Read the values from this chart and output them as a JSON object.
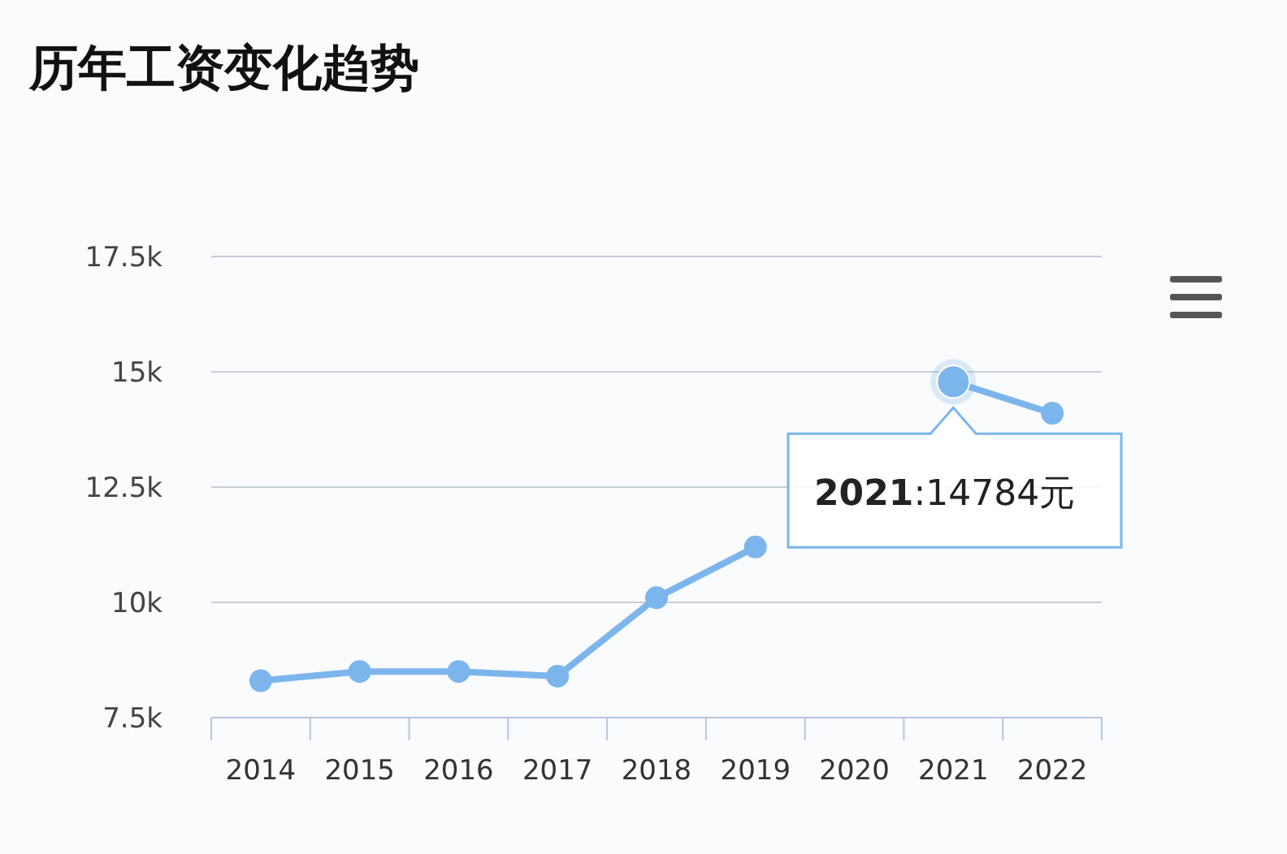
{
  "chart_data": {
    "type": "line",
    "title": "历年工资变化趋势",
    "categories": [
      "2014",
      "2015",
      "2016",
      "2017",
      "2018",
      "2019",
      "2020",
      "2021",
      "2022"
    ],
    "series": [
      {
        "color": "#7cb5ec",
        "values": [
          8300,
          8500,
          8500,
          8400,
          10100,
          11200,
          null,
          14784,
          14100
        ]
      }
    ],
    "ylim": [
      7500,
      17500
    ],
    "yticks": [
      {
        "value": 7500,
        "label": "7.5k"
      },
      {
        "value": 10000,
        "label": "10k"
      },
      {
        "value": 12500,
        "label": "12.5k"
      },
      {
        "value": 15000,
        "label": "15k"
      },
      {
        "value": 17500,
        "label": "17.5k"
      }
    ],
    "grid": "y",
    "marker": "circle",
    "line_style": "solid",
    "annotations": [
      {
        "text": "2021:14784元",
        "x": "2021",
        "y": 14784
      }
    ]
  }
}
